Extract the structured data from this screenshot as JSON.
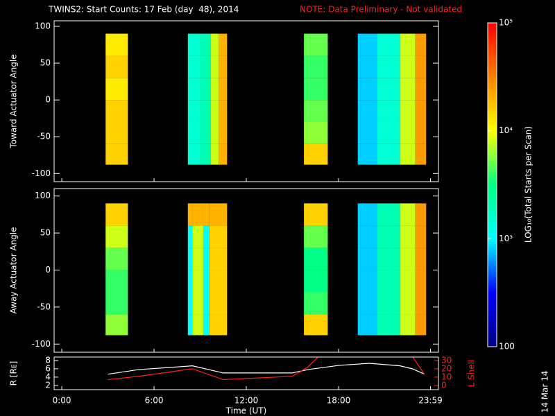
{
  "title": "TWINS2: Start Counts: 17 Feb (day  48), 2014",
  "note": "NOTE: Data Preliminary - Not validated",
  "stamp": "14 Mar 14",
  "colorbar": {
    "label": "LOG₁₀(Total Starts per Scan)",
    "lim": [
      100,
      100000
    ],
    "log": true,
    "colormap": [
      "#000080",
      "#0000ff",
      "#00ffff",
      "#00ff80",
      "#ffff00",
      "#ff8000",
      "#ff0000"
    ],
    "ticks": [
      {
        "value": 100000,
        "label": "10⁵"
      },
      {
        "value": 10000,
        "label": "10⁴"
      },
      {
        "value": 1000,
        "label": "10³"
      },
      100
    ]
  },
  "chart_data": [
    {
      "type": "heatmap",
      "ylabel": "Toward Actuator Angle",
      "xlim": [
        -0.5,
        24.5
      ],
      "ylim": [
        -111,
        107.5
      ],
      "yticks": [
        -100,
        -50,
        0,
        50,
        100
      ],
      "angle_bins": [
        -88,
        -60,
        -30,
        0,
        30,
        60,
        90
      ],
      "segments": [
        {
          "start": 2.85,
          "end": 4.3,
          "values": [
            15000,
            15000,
            15000,
            12000,
            15000,
            12000
          ]
        },
        {
          "start": 8.2,
          "end": 9.0,
          "values": [
            1500,
            1500,
            1500,
            1500,
            1500,
            1500
          ]
        },
        {
          "start": 9.0,
          "end": 9.7,
          "values": [
            2000,
            2000,
            2000,
            2000,
            2000,
            2000
          ]
        },
        {
          "start": 9.7,
          "end": 10.2,
          "values": [
            8000,
            8000,
            8000,
            8000,
            8000,
            8000
          ]
        },
        {
          "start": 10.2,
          "end": 10.75,
          "values": [
            20000,
            20000,
            20000,
            20000,
            20000,
            20000
          ]
        },
        {
          "start": 15.75,
          "end": 17.3,
          "values": [
            15000,
            6000,
            5000,
            4000,
            4000,
            5000
          ]
        },
        {
          "start": 19.25,
          "end": 20.5,
          "values": [
            800,
            800,
            800,
            800,
            800,
            800
          ]
        },
        {
          "start": 20.5,
          "end": 22,
          "values": [
            1500,
            1500,
            1500,
            1500,
            1500,
            1500
          ]
        },
        {
          "start": 22,
          "end": 23,
          "values": [
            8000,
            8000,
            8000,
            8000,
            8000,
            8000
          ]
        },
        {
          "start": 23,
          "end": 23.7,
          "values": [
            25000,
            25000,
            25000,
            25000,
            25000,
            25000
          ]
        }
      ]
    },
    {
      "type": "heatmap",
      "ylabel": "Away Actuator Angle",
      "xlim": [
        -0.5,
        24.5
      ],
      "ylim": [
        -111,
        110
      ],
      "yticks": [
        -100,
        -50,
        0,
        50,
        100
      ],
      "angle_bins": [
        -88,
        -60,
        -30,
        0,
        30,
        60,
        90
      ],
      "segments": [
        {
          "start": 2.85,
          "end": 4.3,
          "values": [
            6000,
            4000,
            4000,
            5000,
            8000,
            15000
          ]
        },
        {
          "start": 8.2,
          "end": 8.5,
          "values": [
            1000,
            1000,
            1000,
            1000,
            1000,
            20000
          ]
        },
        {
          "start": 8.5,
          "end": 9.2,
          "values": [
            8000,
            8000,
            8000,
            8000,
            8000,
            20000
          ]
        },
        {
          "start": 9.2,
          "end": 9.6,
          "values": [
            1000,
            1000,
            1000,
            1000,
            1000,
            20000
          ]
        },
        {
          "start": 9.6,
          "end": 10.75,
          "values": [
            15000,
            15000,
            15000,
            15000,
            15000,
            20000
          ]
        },
        {
          "start": 15.75,
          "end": 17.3,
          "values": [
            15000,
            4000,
            3000,
            3000,
            5000,
            15000
          ]
        },
        {
          "start": 19.25,
          "end": 20.5,
          "values": [
            800,
            800,
            800,
            800,
            800,
            800
          ]
        },
        {
          "start": 20.5,
          "end": 22,
          "values": [
            2000,
            2000,
            2000,
            2000,
            2000,
            2000
          ]
        },
        {
          "start": 22,
          "end": 23,
          "values": [
            8000,
            8000,
            8000,
            8000,
            8000,
            8000
          ]
        },
        {
          "start": 23,
          "end": 23.7,
          "values": [
            25000,
            25000,
            25000,
            25000,
            25000,
            25000
          ]
        }
      ]
    },
    {
      "type": "line",
      "ylabel": "R [Rᴇ]",
      "y2label": "L Shell",
      "xlabel": "Time (UT)",
      "xlim": [
        -0.5,
        24.5
      ],
      "ylim": [
        1,
        8.8
      ],
      "yticks": [
        2,
        4,
        6,
        8
      ],
      "y2lim": [
        -5,
        34
      ],
      "y2ticks": [
        0,
        10,
        20,
        30
      ],
      "xticks": [
        {
          "value": 0,
          "label": "0:00"
        },
        {
          "value": 6,
          "label": "6:00"
        },
        {
          "value": 12,
          "label": "12:00"
        },
        {
          "value": 18,
          "label": "18:00"
        },
        {
          "value": 23.983,
          "label": "23:59"
        }
      ],
      "x": [
        3,
        5,
        8.5,
        10.5,
        15,
        16,
        17,
        18,
        20,
        22,
        22.8,
        23.6
      ],
      "series": [
        {
          "name": "R",
          "color": "#ffffff",
          "values": [
            4.7,
            5.8,
            6.7,
            5,
            5,
            5.8,
            6.3,
            6.8,
            7.3,
            6.7,
            6,
            4.7
          ]
        },
        {
          "name": "L",
          "color": "#ff2020",
          "axis": "y2",
          "values": [
            7,
            11,
            20,
            7,
            11,
            22,
            40,
            null,
            null,
            null,
            35,
            13
          ]
        }
      ]
    }
  ]
}
